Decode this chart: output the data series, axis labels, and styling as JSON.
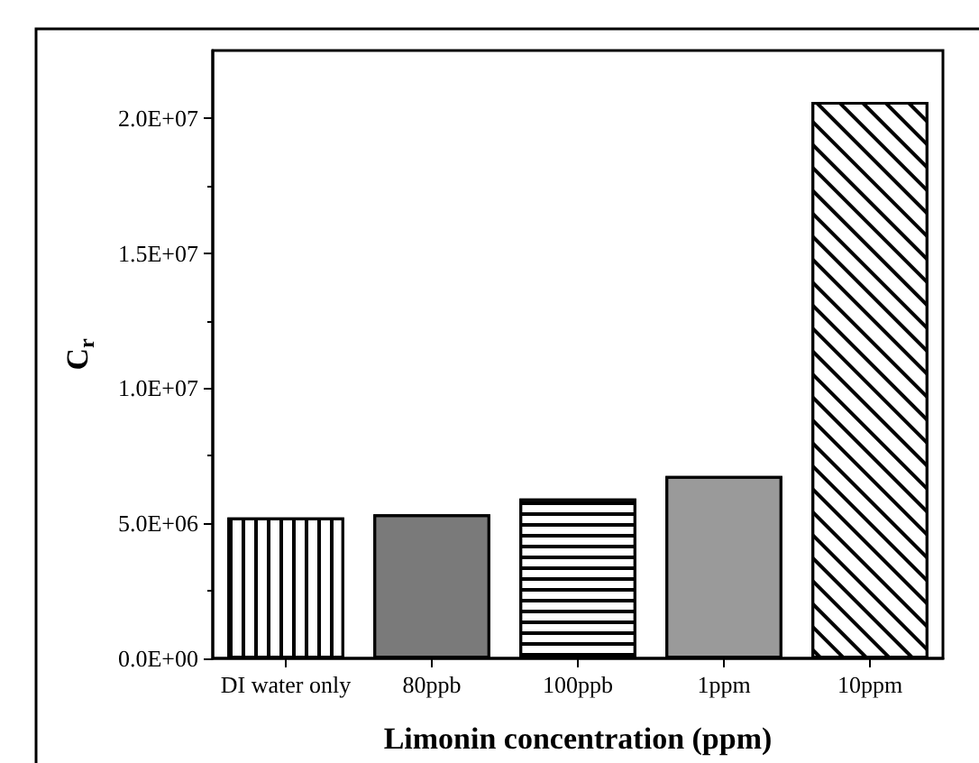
{
  "chart_data": {
    "type": "bar",
    "xlabel": "Limonin concentration (ppm)",
    "ylabel": "C$_{r}$",
    "categories": [
      "DI water only",
      "80ppb",
      "100ppb",
      "1ppm",
      "10ppm"
    ],
    "values": [
      5220000,
      5330000,
      5920000,
      6750000,
      20600000
    ],
    "colors": [
      "#ffffff",
      "#7a7a7a",
      "#ffffff",
      "#9a9a9a",
      "#ffffff"
    ],
    "ylim": [
      0,
      22500000
    ],
    "yticks": [
      {
        "value": 0,
        "label": "0.0E+00"
      },
      {
        "value": 5000000,
        "label": "5.0E+06"
      },
      {
        "value": 10000000,
        "label": "1.0E+07"
      },
      {
        "value": 15000000,
        "label": "1.5E+07"
      },
      {
        "value": 20000000,
        "label": "2.0E+07"
      }
    ],
    "grid": false
  }
}
